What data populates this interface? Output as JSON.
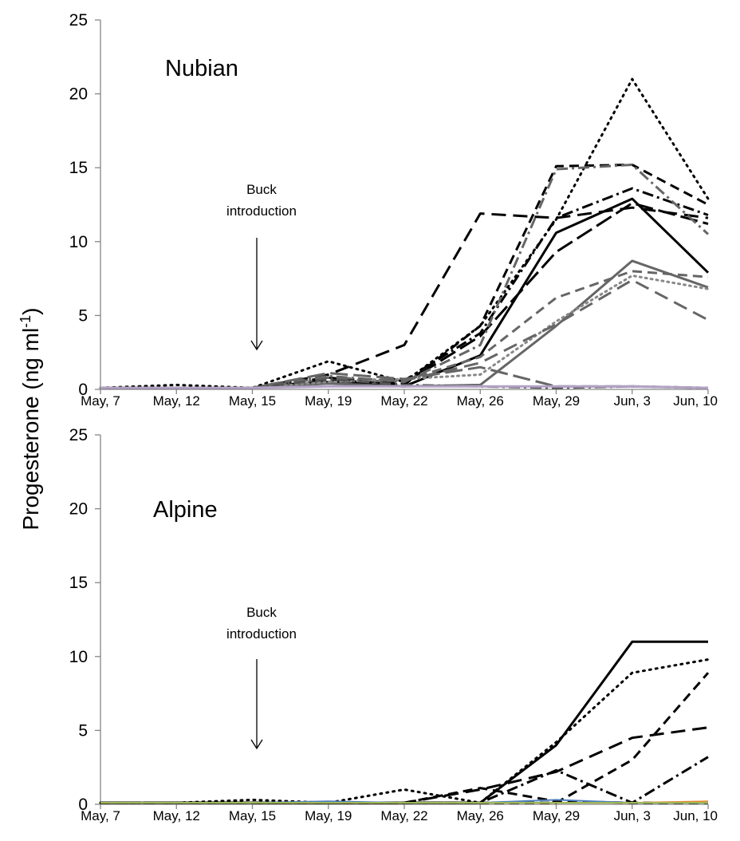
{
  "ylabel": "Progesterone (ng ml",
  "ylabel_sup": "-1",
  "ylabel_close": ")",
  "chart_data": [
    {
      "type": "line",
      "title": "Nubian",
      "xlabel": "",
      "ylabel": "Progesterone (ng ml-1)",
      "ylim": [
        0,
        25
      ],
      "yticks": [
        0,
        5,
        10,
        15,
        20,
        25
      ],
      "categories": [
        "May, 7",
        "May, 12",
        "May, 15",
        "May, 19",
        "May, 22",
        "May, 26",
        "May, 29",
        "Jun, 3",
        "Jun, 10"
      ],
      "annotation": {
        "line1": "Buck",
        "line2": "introduction",
        "at": "May, 15"
      },
      "series": [
        {
          "color": "#000000",
          "dash": "2,6",
          "width": 3,
          "values": [
            0.1,
            0.3,
            0.1,
            1.9,
            0.5,
            4.3,
            11.5,
            21.0,
            12.9
          ]
        },
        {
          "color": "#000000",
          "dash": "18,9",
          "width": 3,
          "values": [
            0.1,
            0.1,
            0.1,
            1.0,
            3.0,
            11.9,
            11.6,
            12.3,
            11.6
          ]
        },
        {
          "color": "#000000",
          "dash": "12,7",
          "width": 3,
          "values": [
            0.1,
            0.1,
            0.1,
            0.8,
            0.3,
            4.3,
            15.1,
            15.2,
            12.5
          ]
        },
        {
          "color": "#000000",
          "dash": "",
          "width": 3,
          "values": [
            0.1,
            0.1,
            0.1,
            0.5,
            0.2,
            2.3,
            10.6,
            12.9,
            7.9
          ]
        },
        {
          "color": "#000000",
          "dash": "14,5,3,5",
          "width": 3,
          "values": [
            0.1,
            0.1,
            0.1,
            0.7,
            0.6,
            3.8,
            11.6,
            13.6,
            11.8
          ]
        },
        {
          "color": "#000000",
          "dash": "22,7",
          "width": 3,
          "values": [
            0.1,
            0.1,
            0.1,
            0.6,
            0.4,
            3.6,
            9.3,
            12.6,
            11.2
          ]
        },
        {
          "color": "#666666",
          "dash": "14,5,3,5",
          "width": 3,
          "values": [
            0.1,
            0.1,
            0.1,
            0.9,
            0.5,
            3.0,
            14.9,
            15.2,
            10.5
          ]
        },
        {
          "color": "#666666",
          "dash": "",
          "width": 3,
          "values": [
            0.1,
            0.1,
            0.1,
            0.4,
            0.2,
            0.3,
            4.3,
            8.7,
            6.9
          ]
        },
        {
          "color": "#666666",
          "dash": "12,7",
          "width": 3,
          "values": [
            0.1,
            0.1,
            0.1,
            0.5,
            0.6,
            2.2,
            6.2,
            8.0,
            7.6
          ]
        },
        {
          "color": "#888888",
          "dash": "2,5",
          "width": 3,
          "values": [
            0.1,
            0.1,
            0.1,
            0.5,
            0.7,
            1.0,
            4.6,
            7.7,
            6.8
          ]
        },
        {
          "color": "#666666",
          "dash": "18,9",
          "width": 3,
          "values": [
            0.1,
            0.1,
            0.1,
            0.8,
            0.6,
            1.8,
            4.4,
            7.4,
            4.7
          ]
        },
        {
          "color": "#666666",
          "dash": "22,7",
          "width": 3,
          "values": [
            0.1,
            0.1,
            0.1,
            1.1,
            0.7,
            1.5,
            0.2,
            0.2,
            0.1
          ]
        },
        {
          "color": "#555555",
          "dash": "14,5,3,5",
          "width": 3,
          "values": [
            0.1,
            0.1,
            0.1,
            0.7,
            0.3,
            0.2,
            0.1,
            0.2,
            0.1
          ]
        },
        {
          "color": "#b3a2c7",
          "dash": "",
          "width": 3,
          "values": [
            0.1,
            0.1,
            0.1,
            0.2,
            0.2,
            0.2,
            0.2,
            0.2,
            0.1
          ]
        }
      ]
    },
    {
      "type": "line",
      "title": "Alpine",
      "xlabel": "",
      "ylabel": "Progesterone (ng ml-1)",
      "ylim": [
        0,
        25
      ],
      "yticks": [
        0,
        5,
        10,
        15,
        20,
        25
      ],
      "categories": [
        "May, 7",
        "May, 12",
        "May, 15",
        "May, 19",
        "May, 22",
        "May, 26",
        "May, 29",
        "Jun, 3",
        "Jun, 10"
      ],
      "annotation": {
        "line1": "Buck",
        "line2": "introduction",
        "at": "May, 15"
      },
      "series": [
        {
          "color": "#000000",
          "dash": "",
          "width": 3,
          "values": [
            0.1,
            0.1,
            0.1,
            0.1,
            0.1,
            0.1,
            4.0,
            11.0,
            11.0
          ]
        },
        {
          "color": "#000000",
          "dash": "2,6",
          "width": 3,
          "values": [
            0.1,
            0.1,
            0.3,
            0.1,
            1.0,
            0.1,
            4.2,
            8.9,
            9.8
          ]
        },
        {
          "color": "#000000",
          "dash": "12,7",
          "width": 3,
          "values": [
            0.1,
            0.1,
            0.1,
            0.1,
            0.1,
            0.1,
            0.1,
            3.0,
            8.9
          ]
        },
        {
          "color": "#000000",
          "dash": "18,9",
          "width": 3,
          "values": [
            0.1,
            0.1,
            0.1,
            0.1,
            0.1,
            1.0,
            2.2,
            4.5,
            5.2
          ]
        },
        {
          "color": "#000000",
          "dash": "14,5,3,5",
          "width": 3,
          "values": [
            0.1,
            0.1,
            0.1,
            0.1,
            0.1,
            0.1,
            2.3,
            0.1,
            3.2
          ]
        },
        {
          "color": "#000000",
          "dash": "12,7",
          "width": 3,
          "values": [
            0.1,
            0.1,
            0.1,
            0.1,
            0.1,
            1.1,
            0.2,
            0.1,
            0.1
          ]
        },
        {
          "color": "#4e7fbf",
          "dash": "",
          "width": 2,
          "values": [
            0.1,
            0.1,
            0.1,
            0.2,
            0.1,
            0.1,
            0.3,
            0.1,
            0.1
          ]
        },
        {
          "color": "#e58b36",
          "dash": "",
          "width": 2,
          "values": [
            0.1,
            0.1,
            0.1,
            0.1,
            0.1,
            0.1,
            0.1,
            0.1,
            0.2
          ]
        },
        {
          "color": "#9bbb59",
          "dash": "",
          "width": 2,
          "values": [
            0.1,
            0.1,
            0.1,
            0.1,
            0.1,
            0.1,
            0.1,
            0.1,
            0.1
          ]
        }
      ]
    }
  ]
}
